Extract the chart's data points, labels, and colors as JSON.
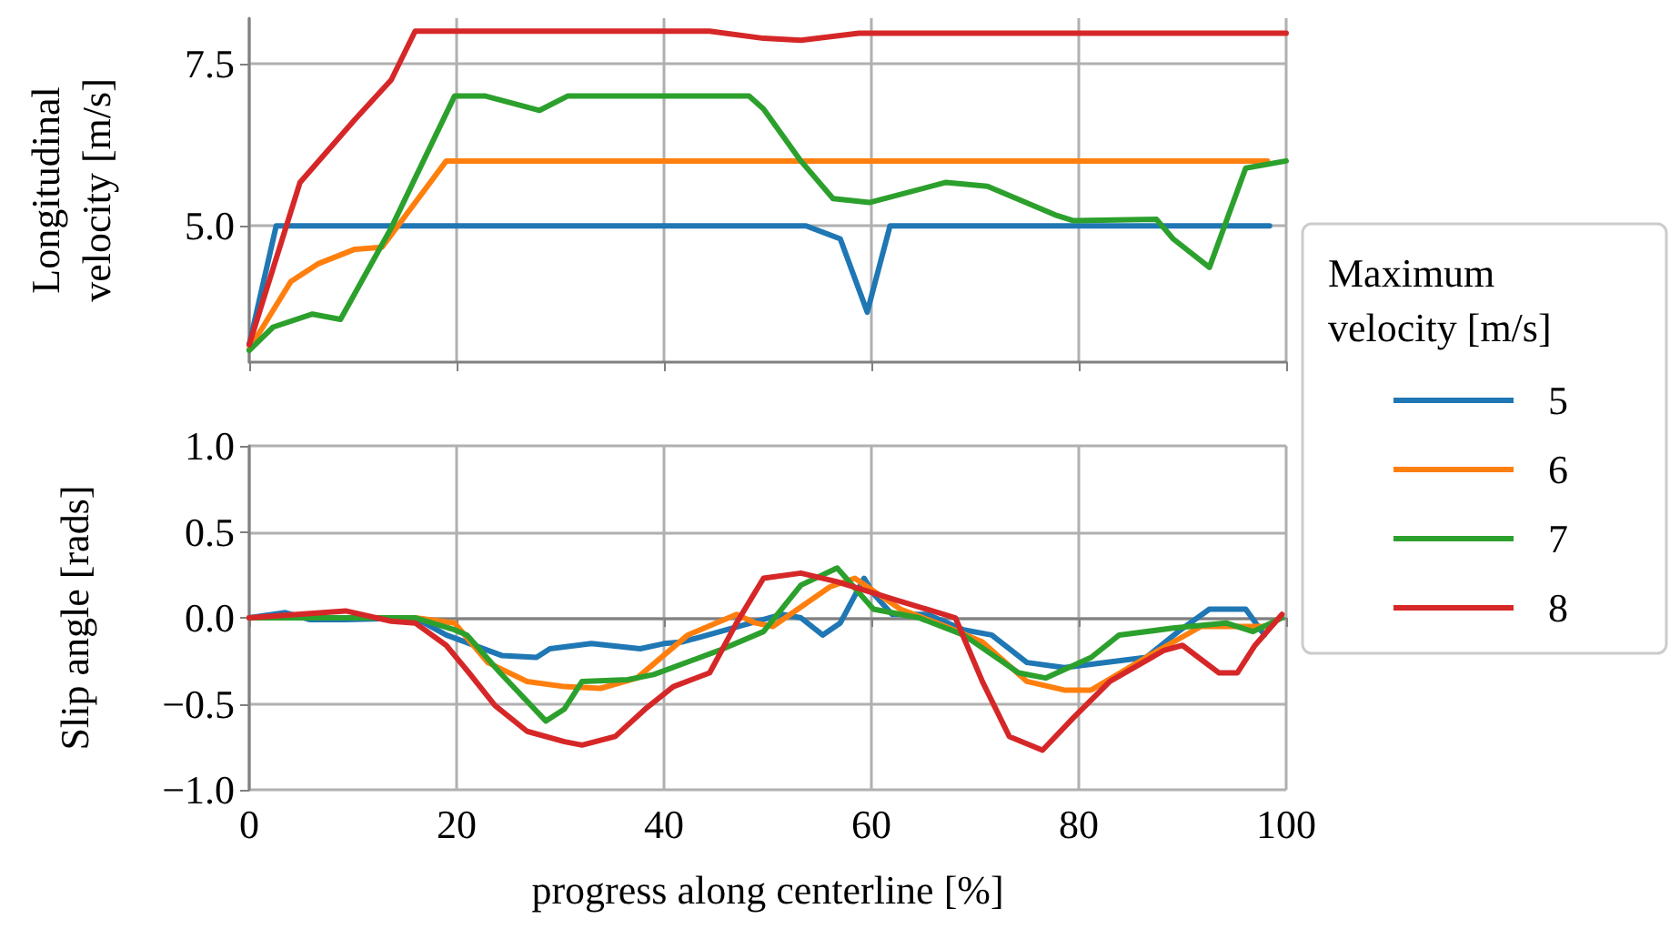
{
  "chart_data": [
    {
      "type": "line",
      "ylabel": "Longitudinal velocity [m/s]",
      "xlim": [
        0,
        100
      ],
      "xticks": [
        0,
        20,
        40,
        60,
        80,
        100
      ],
      "ylim": [
        2.9,
        8.2
      ],
      "yticks": [
        {
          "value": 5,
          "label": "5.0"
        },
        {
          "value": 7.5,
          "label": "7.5"
        }
      ],
      "grid": true,
      "tick_labels": "y",
      "line_style": "solid",
      "marker": "none",
      "series": [
        {
          "color": "#1f77b4",
          "x": [
            0,
            2.6,
            53.7,
            57,
            59.6,
            61.8,
            98.4
          ],
          "values": [
            3.17,
            5.0,
            5.0,
            4.8,
            3.67,
            5.0,
            5.0
          ]
        },
        {
          "color": "#ff7f0e",
          "x": [
            0,
            4,
            6.7,
            10.2,
            12.8,
            19,
            98.2
          ],
          "values": [
            3.1,
            4.14,
            4.42,
            4.64,
            4.67,
            6.0,
            6.0
          ]
        },
        {
          "color": "#2ca02c",
          "x": [
            0,
            2.3,
            6.1,
            8.8,
            13.7,
            19.8,
            22.8,
            28,
            30.7,
            48.2,
            49.6,
            53.2,
            56.3,
            59.8,
            67.2,
            71.2,
            77.7,
            79.5,
            87.5,
            89.1,
            92.6,
            96.1,
            100
          ],
          "values": [
            3.08,
            3.44,
            3.64,
            3.56,
            4.97,
            7.0,
            7.0,
            6.78,
            7.0,
            7.0,
            6.8,
            6.0,
            5.42,
            5.36,
            5.67,
            5.61,
            5.17,
            5.08,
            5.1,
            4.8,
            4.36,
            5.89,
            6.0
          ]
        },
        {
          "color": "#d62728",
          "x": [
            0,
            4.9,
            10.2,
            13.7,
            16,
            44.4,
            49.6,
            53.2,
            58.8,
            100
          ],
          "values": [
            3.17,
            5.67,
            6.64,
            7.25,
            8.0,
            8.0,
            7.89,
            7.86,
            7.97,
            7.97
          ]
        }
      ]
    },
    {
      "type": "line",
      "xlabel": "progress along centerline [%]",
      "ylabel": "Slip angle [rads]",
      "legend_title": "Maximum velocity [m/s]",
      "legend": "right",
      "xlim": [
        0,
        100
      ],
      "xticks": [
        0,
        20,
        40,
        60,
        80,
        100
      ],
      "ylim": [
        -1.0,
        1.0
      ],
      "yticks": [
        {
          "value": -1,
          "label": "−1.0"
        },
        {
          "value": -0.5,
          "label": "−0.5"
        },
        {
          "value": 0,
          "label": "0.0"
        },
        {
          "value": 0.5,
          "label": "0.5"
        },
        {
          "value": 1,
          "label": "1.0"
        }
      ],
      "grid": true,
      "line_style": "solid",
      "marker": "none",
      "series": [
        {
          "name": "5",
          "color": "#1f77b4",
          "x": [
            0,
            3.5,
            5.8,
            9.3,
            16,
            19,
            24.4,
            27.7,
            29,
            33,
            37.7,
            40,
            41.8,
            51.4,
            53.2,
            55.3,
            57,
            59.3,
            60.2,
            62,
            65.4,
            68.9,
            71.6,
            75,
            78.6,
            86.5,
            89.6,
            92.6,
            96.1,
            97.9
          ],
          "values": [
            0,
            0.03,
            -0.01,
            -0.01,
            0,
            -0.1,
            -0.22,
            -0.23,
            -0.18,
            -0.15,
            -0.18,
            -0.15,
            -0.14,
            0.02,
            0,
            -0.1,
            -0.03,
            0.23,
            0.14,
            0.02,
            0.02,
            -0.07,
            -0.1,
            -0.26,
            -0.29,
            -0.23,
            -0.08,
            0.05,
            0.05,
            -0.1
          ]
        },
        {
          "name": "6",
          "color": "#ff7f0e",
          "x": [
            0,
            9.3,
            16,
            19.8,
            23,
            26.8,
            30.4,
            33.9,
            37.4,
            42.3,
            47,
            48.8,
            50.5,
            56,
            58.4,
            62.8,
            67.2,
            70.7,
            75,
            78.6,
            81.2,
            86.5,
            91.8,
            98.2
          ],
          "values": [
            0,
            0,
            0,
            -0.03,
            -0.26,
            -0.37,
            -0.4,
            -0.41,
            -0.35,
            -0.1,
            0.02,
            -0.03,
            -0.05,
            0.18,
            0.23,
            0.05,
            -0.05,
            -0.14,
            -0.37,
            -0.42,
            -0.42,
            -0.23,
            -0.05,
            -0.05
          ]
        },
        {
          "name": "7",
          "color": "#2ca02c",
          "x": [
            0,
            9.3,
            16,
            19.8,
            21,
            24.2,
            28.6,
            30.4,
            32.1,
            36.5,
            39,
            45.3,
            49.6,
            53.2,
            56.7,
            60.2,
            64.6,
            68.9,
            74.2,
            76.8,
            81.2,
            83.9,
            89.1,
            94.2,
            96.8,
            99.6
          ],
          "values": [
            0,
            0,
            0,
            -0.07,
            -0.1,
            -0.32,
            -0.6,
            -0.53,
            -0.37,
            -0.36,
            -0.33,
            -0.19,
            -0.08,
            0.19,
            0.29,
            0.05,
            0,
            -0.1,
            -0.32,
            -0.35,
            -0.23,
            -0.1,
            -0.06,
            -0.03,
            -0.08,
            0
          ]
        },
        {
          "name": "8",
          "color": "#d62728",
          "x": [
            0,
            9.3,
            13.7,
            16,
            19,
            21.2,
            23.7,
            26.8,
            30.4,
            32.1,
            35.3,
            38.2,
            40.9,
            44.4,
            47,
            49.6,
            53.2,
            56.7,
            62,
            68.1,
            70.7,
            73.3,
            76.5,
            79.5,
            83,
            88.2,
            90,
            93.5,
            95.3,
            97,
            99.6
          ],
          "values": [
            0,
            0.04,
            -0.02,
            -0.03,
            -0.16,
            -0.32,
            -0.51,
            -0.66,
            -0.72,
            -0.74,
            -0.69,
            -0.53,
            -0.4,
            -0.32,
            -0.03,
            0.23,
            0.26,
            0.21,
            0.11,
            0,
            -0.37,
            -0.69,
            -0.77,
            -0.58,
            -0.37,
            -0.19,
            -0.16,
            -0.32,
            -0.32,
            -0.16,
            0.02
          ]
        }
      ]
    }
  ]
}
